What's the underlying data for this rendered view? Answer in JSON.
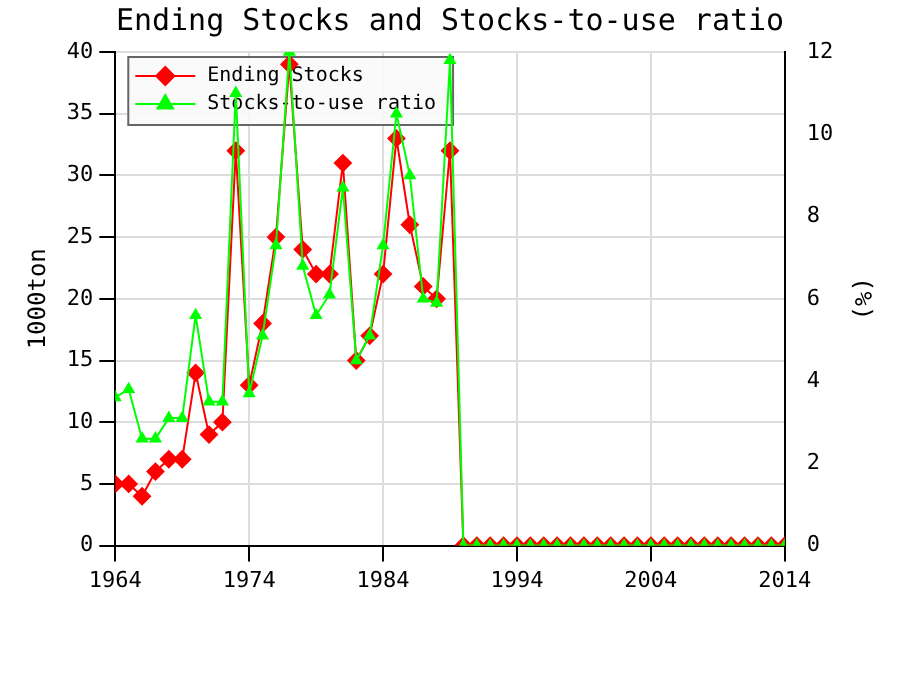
{
  "chart_data": {
    "type": "line",
    "title": "Ending Stocks and Stocks-to-use ratio",
    "ylabel": "1000ton",
    "y2label": "(%)",
    "x": [
      1964,
      1965,
      1966,
      1967,
      1968,
      1969,
      1970,
      1971,
      1972,
      1973,
      1974,
      1975,
      1976,
      1977,
      1978,
      1979,
      1980,
      1981,
      1982,
      1983,
      1984,
      1985,
      1986,
      1987,
      1988,
      1989,
      1990,
      1991,
      1992,
      1993,
      1994,
      1995,
      1996,
      1997,
      1998,
      1999,
      2000,
      2001,
      2002,
      2003,
      2004,
      2005,
      2006,
      2007,
      2008,
      2009,
      2010,
      2011,
      2012,
      2013,
      2014
    ],
    "series": [
      {
        "name": "Ending Stocks",
        "color": "#ff0000",
        "marker": "diamond",
        "values": [
          5,
          5,
          4,
          6,
          7,
          7,
          14,
          9,
          10,
          32,
          13,
          18,
          25,
          39,
          24,
          22,
          22,
          31,
          15,
          17,
          22,
          33,
          26,
          21,
          20,
          32,
          0,
          0,
          0,
          0,
          0,
          0,
          0,
          0,
          0,
          0,
          0,
          0,
          0,
          0,
          0,
          0,
          0,
          0,
          0,
          0,
          0,
          0,
          0,
          0,
          0
        ]
      },
      {
        "name": "Stocks-to-use ratio",
        "color": "#00ff00",
        "marker": "triangle",
        "axis": "y2",
        "values": [
          3.6,
          3.8,
          2.6,
          2.6,
          3.1,
          3.1,
          5.6,
          3.5,
          3.5,
          11,
          3.7,
          5.1,
          7.3,
          12,
          6.8,
          5.6,
          6.1,
          8.7,
          4.5,
          5.1,
          7.3,
          10.5,
          9,
          6,
          5.9,
          11.8,
          0,
          0,
          0,
          0,
          0,
          0,
          0,
          0,
          0,
          0,
          0,
          0,
          0,
          0,
          0,
          0,
          0,
          0,
          0,
          0,
          0,
          0,
          0,
          0,
          0
        ]
      }
    ],
    "xlim": [
      1964,
      2014
    ],
    "xticks": [
      1964,
      1974,
      1984,
      1994,
      2004,
      2014
    ],
    "ylim": [
      0,
      40
    ],
    "yticks": [
      0,
      5,
      10,
      15,
      20,
      25,
      30,
      35,
      40
    ],
    "y2lim": [
      0,
      12
    ],
    "y2ticks": [
      0,
      2,
      4,
      6,
      8,
      10,
      12
    ],
    "grid": true,
    "legend": "top left",
    "line_style": "solid"
  }
}
